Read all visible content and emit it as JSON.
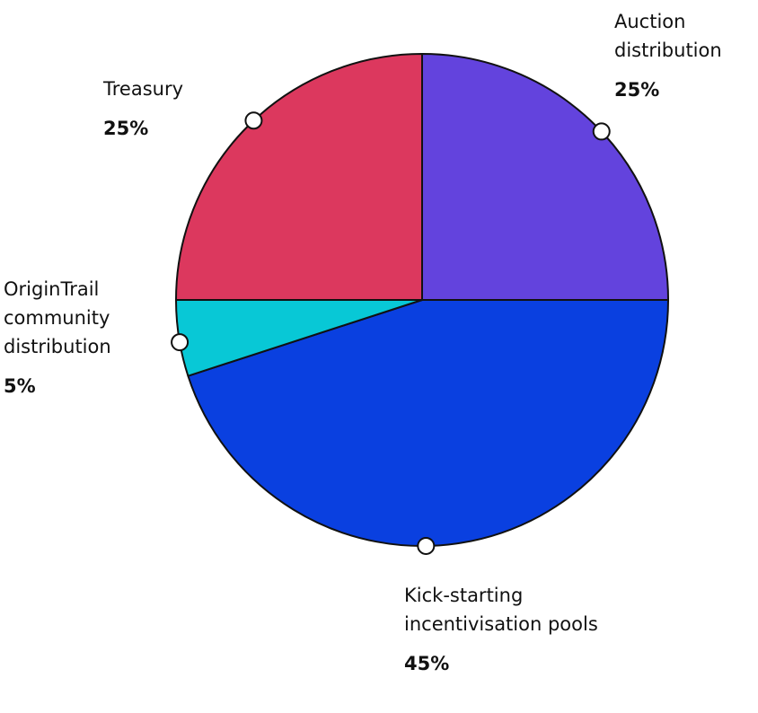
{
  "chart_data": {
    "type": "pie",
    "slices": [
      {
        "label": "Auction\ndistribution",
        "value": 25,
        "display": "25%",
        "color": "#6343DD"
      },
      {
        "label": "Kick-starting\nincentivisation pools",
        "value": 45,
        "display": "45%",
        "color": "#0A40E0"
      },
      {
        "label": "OriginTrail\ncommunity\ndistribution",
        "value": 5,
        "display": "5%",
        "color": "#08C8D6"
      },
      {
        "label": "Treasury",
        "value": 25,
        "display": "25%",
        "color": "#DC385E"
      }
    ],
    "start": "12 o'clock",
    "direction": "clockwise",
    "legend": "none",
    "stroke_color": "#111111"
  }
}
